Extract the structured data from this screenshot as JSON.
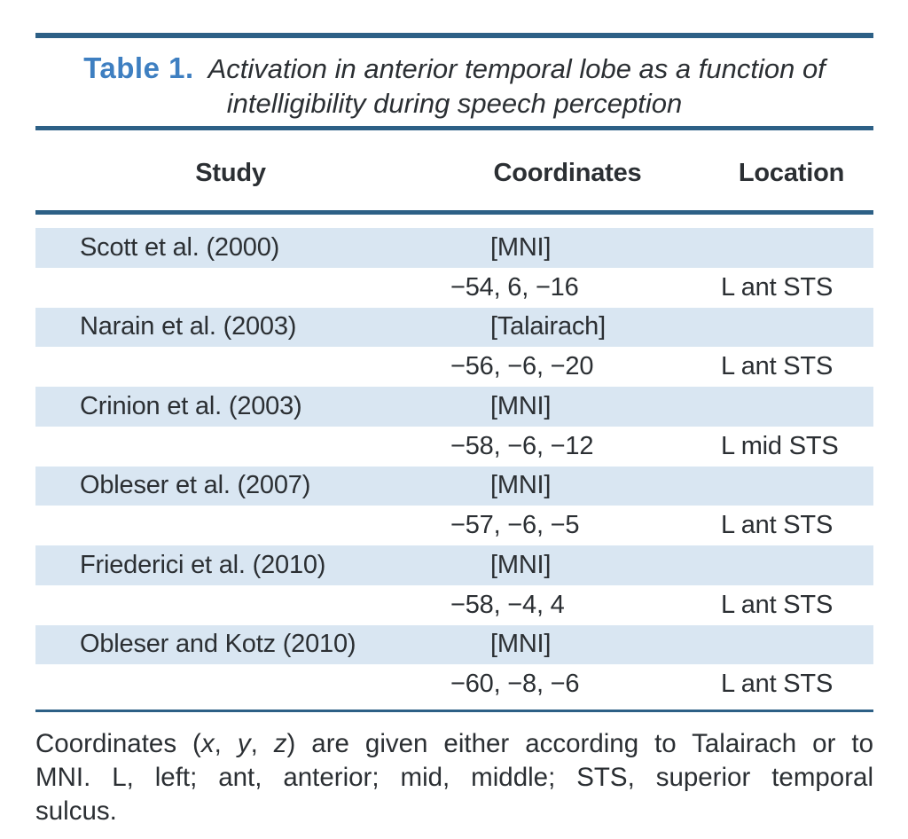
{
  "title": {
    "label": "Table 1.",
    "caption": "Activation in anterior temporal lobe as a function of intelligibility during speech perception"
  },
  "table": {
    "headers": [
      "Study",
      "Coordinates",
      "Location"
    ],
    "studies": [
      {
        "study": "Scott et al. (2000)",
        "system": "[MNI]",
        "coordinates": "−54, 6, −16",
        "location": "L ant STS"
      },
      {
        "study": "Narain et al. (2003)",
        "system": "[Talairach]",
        "coordinates": "−56, −6, −20",
        "location": "L ant STS"
      },
      {
        "study": "Crinion et al. (2003)",
        "system": "[MNI]",
        "coordinates": "−58, −6, −12",
        "location": "L mid STS"
      },
      {
        "study": "Obleser et al. (2007)",
        "system": "[MNI]",
        "coordinates": "−57, −6, −5",
        "location": "L ant STS"
      },
      {
        "study": "Friederici et al. (2010)",
        "system": "[MNI]",
        "coordinates": "−58, −4, 4",
        "location": "L ant STS"
      },
      {
        "study": "Obleser and Kotz (2010)",
        "system": "[MNI]",
        "coordinates": "−60, −8, −6",
        "location": "L ant STS"
      }
    ]
  },
  "footnote": {
    "line1_prefix": "Coordinates (",
    "x": "x",
    "sep1": ", ",
    "y": "y",
    "sep2": ", ",
    "z": "z",
    "line1_suffix": ") are given either according to Talairach or to",
    "line2": "MNI. L, left; ant, anterior; mid, middle; STS, superior temporal",
    "line3": "sulcus."
  },
  "colors": {
    "accent_blue": "#3e7fc1",
    "rule_blue": "#2d6086",
    "row_shade": "#d9e6f2",
    "text": "#2b2f33"
  }
}
